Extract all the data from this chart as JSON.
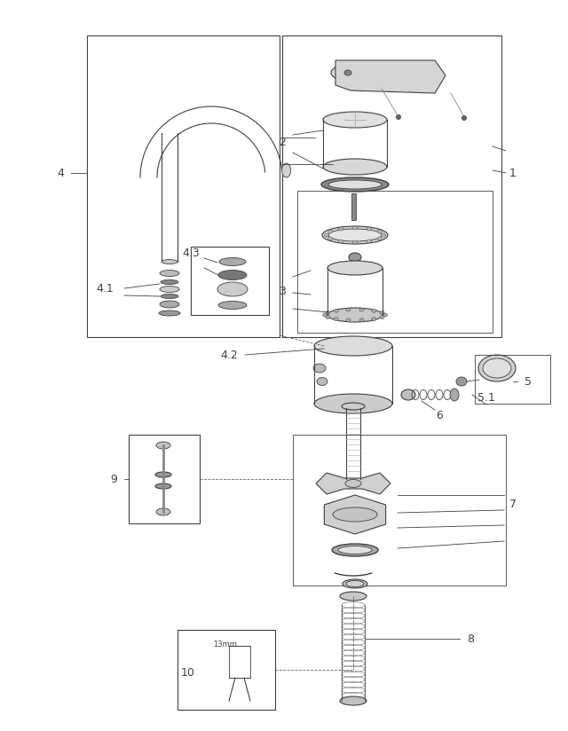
{
  "bg_color": "#ffffff",
  "lc": "#404040",
  "lc_light": "#707070",
  "fig_w": 6.4,
  "fig_h": 8.24,
  "dpi": 100,
  "xmax": 640,
  "ymax": 824
}
